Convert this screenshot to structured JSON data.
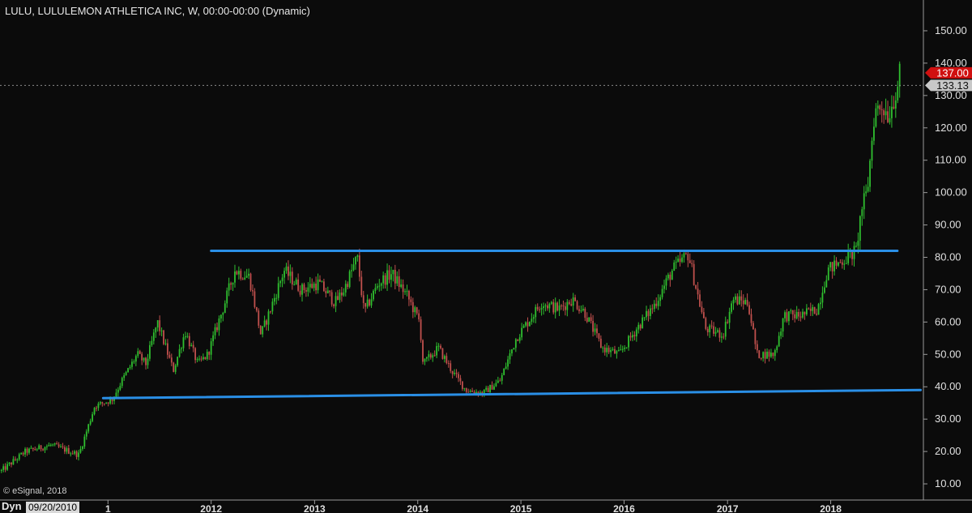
{
  "header": {
    "title": "LULU, LULULEMON ATHLETICA INC, W, 00:00-00:00 (Dynamic)"
  },
  "footer": {
    "copyright": "© eSignal, 2018",
    "mode_label": "Dyn",
    "cursor_date": "09/20/2010"
  },
  "price_badges": {
    "last_price": "137.00",
    "reference_price": "133.13",
    "last_color": "#d01010",
    "reference_color": "#c8c8c8"
  },
  "colors": {
    "background": "#0b0b0b",
    "up_candle": "#2fbf2f",
    "down_candle": "#c0504d",
    "trendline": "#2a8fe6",
    "axis_text": "#e0e0e0",
    "grid": "#3a3a3a"
  },
  "chart_data": {
    "type": "candlestick",
    "symbol": "LULU",
    "interval": "W",
    "title": "LULU, LULULEMON ATHLETICA INC, W, 00:00-00:00 (Dynamic)",
    "x_tick_labels": [
      "1",
      "2012",
      "2013",
      "2014",
      "2015",
      "2016",
      "2017",
      "2018"
    ],
    "x_tick_dates": [
      "2011-01-01",
      "2012-01-01",
      "2013-01-01",
      "2014-01-01",
      "2015-01-01",
      "2016-01-01",
      "2017-01-01",
      "2018-01-01"
    ],
    "x_range": [
      "2009-12-15",
      "2018-11-25"
    ],
    "y_ticks": [
      10,
      20,
      30,
      40,
      50,
      60,
      70,
      80,
      90,
      100,
      110,
      120,
      130,
      140,
      150
    ],
    "y_tick_labels": [
      "10.00",
      "20.00",
      "30.00",
      "40.00",
      "50.00",
      "60.00",
      "70.00",
      "80.00",
      "90.00",
      "100.00",
      "110.00",
      "120.00",
      "130.00",
      "140.00",
      "150.00"
    ],
    "ylim": [
      5,
      155
    ],
    "grid": false,
    "last_price": 137.0,
    "reference_price": 133.13,
    "price_path": [
      [
        "2009-12-20",
        14
      ],
      [
        "2010-03-15",
        20
      ],
      [
        "2010-06-15",
        22
      ],
      [
        "2010-09-20",
        19
      ],
      [
        "2010-10-20",
        27
      ],
      [
        "2010-11-15",
        34
      ],
      [
        "2011-01-15",
        36
      ],
      [
        "2011-02-20",
        42
      ],
      [
        "2011-04-15",
        50
      ],
      [
        "2011-05-15",
        47
      ],
      [
        "2011-06-25",
        60
      ],
      [
        "2011-08-20",
        45
      ],
      [
        "2011-10-01",
        57
      ],
      [
        "2011-11-15",
        47
      ],
      [
        "2011-12-20",
        50
      ],
      [
        "2012-02-15",
        65
      ],
      [
        "2012-03-25",
        76
      ],
      [
        "2012-05-15",
        74
      ],
      [
        "2012-06-25",
        56
      ],
      [
        "2012-07-25",
        63
      ],
      [
        "2012-09-15",
        76
      ],
      [
        "2012-11-15",
        70
      ],
      [
        "2013-01-15",
        72
      ],
      [
        "2013-03-15",
        66
      ],
      [
        "2013-04-15",
        70
      ],
      [
        "2013-06-01",
        80
      ],
      [
        "2013-06-25",
        63
      ],
      [
        "2013-08-15",
        72
      ],
      [
        "2013-10-01",
        75
      ],
      [
        "2013-11-25",
        68
      ],
      [
        "2014-01-08",
        60
      ],
      [
        "2014-01-20",
        47
      ],
      [
        "2014-03-15",
        52
      ],
      [
        "2014-05-01",
        45
      ],
      [
        "2014-06-20",
        39
      ],
      [
        "2014-08-20",
        38
      ],
      [
        "2014-10-20",
        42
      ],
      [
        "2014-12-15",
        55
      ],
      [
        "2015-03-15",
        66
      ],
      [
        "2015-05-15",
        64
      ],
      [
        "2015-07-01",
        67
      ],
      [
        "2015-08-15",
        63
      ],
      [
        "2015-10-15",
        52
      ],
      [
        "2015-12-15",
        50
      ],
      [
        "2016-02-15",
        58
      ],
      [
        "2016-04-15",
        65
      ],
      [
        "2016-06-20",
        76
      ],
      [
        "2016-08-15",
        81
      ],
      [
        "2016-10-15",
        58
      ],
      [
        "2016-12-15",
        56
      ],
      [
        "2017-01-20",
        67
      ],
      [
        "2017-03-15",
        66
      ],
      [
        "2017-04-15",
        50
      ],
      [
        "2017-06-15",
        50
      ],
      [
        "2017-07-20",
        62
      ],
      [
        "2017-09-15",
        62
      ],
      [
        "2017-11-15",
        64
      ],
      [
        "2017-12-20",
        76
      ],
      [
        "2018-03-01",
        80
      ],
      [
        "2018-04-01",
        82
      ],
      [
        "2018-04-20",
        95
      ],
      [
        "2018-05-10",
        100
      ],
      [
        "2018-06-05",
        125
      ],
      [
        "2018-07-01",
        127
      ],
      [
        "2018-07-25",
        124
      ],
      [
        "2018-08-15",
        130
      ],
      [
        "2018-09-05",
        137
      ]
    ],
    "trendlines": [
      {
        "start": [
          "2012-01-01",
          82
        ],
        "end": [
          "2018-08-25",
          82
        ]
      },
      {
        "start": [
          "2010-12-15",
          36.5
        ],
        "end": [
          "2018-11-15",
          39
        ]
      }
    ]
  }
}
